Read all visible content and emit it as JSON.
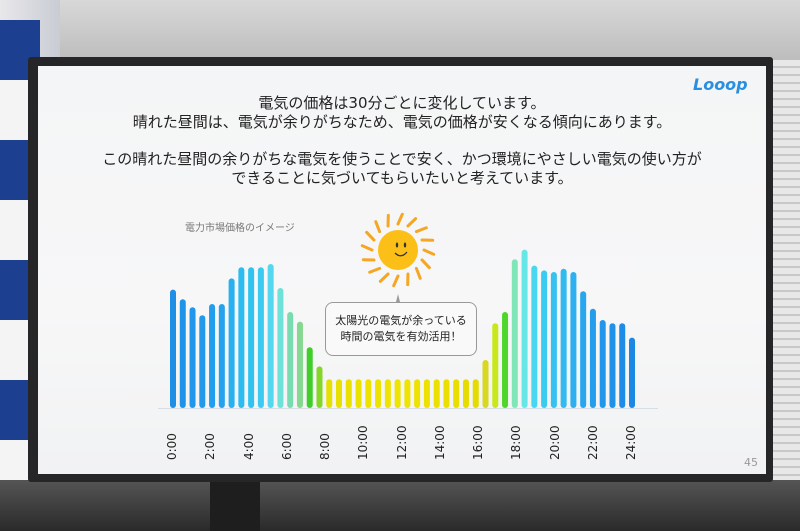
{
  "slide": {
    "logo": "Looop",
    "lines": [
      "電気の価格は30分ごとに変化しています。",
      "晴れた昼間は、電気が余りがちなため、電気の価格が安くなる傾向にあります。",
      "この晴れた昼間の余りがちな電気を使うことで安く、かつ環境にやさしい電気の使い方が",
      "できることに気づいてもらいたいと考えています。"
    ],
    "page_number": "45",
    "callout": [
      "太陽光の電気が余っている",
      "時間の電気を有効活用！"
    ]
  },
  "chart_data": {
    "type": "bar",
    "title": "電力市場価格のイメージ",
    "xlabel": "",
    "ylabel": "",
    "x_tick_labels": [
      "0:00",
      "2:00",
      "4:00",
      "6:00",
      "8:00",
      "10:00",
      "12:00",
      "14:00",
      "16:00",
      "18:00",
      "20:00",
      "22:00",
      "24:00"
    ],
    "values": [
      74,
      68,
      63,
      58,
      65,
      65,
      81,
      88,
      88,
      88,
      90,
      75,
      60,
      54,
      38,
      26,
      18,
      18,
      18,
      18,
      18,
      18,
      18,
      18,
      18,
      18,
      18,
      18,
      18,
      18,
      18,
      18,
      30,
      53,
      60,
      93,
      99,
      89,
      86,
      85,
      87,
      85,
      73,
      62,
      55,
      53,
      53,
      44
    ],
    "colors": [
      "#1f8fe6",
      "#1f93e8",
      "#2196ea",
      "#2299ea",
      "#239ded",
      "#25a2ee",
      "#28b0ef",
      "#2cbcf0",
      "#30c3f0",
      "#3ccbf0",
      "#55d8ef",
      "#6ee2d8",
      "#78dcb0",
      "#86d890",
      "#3fcf28",
      "#86d628",
      "#e6e000",
      "#e8e000",
      "#eae100",
      "#ece200",
      "#ede200",
      "#eee300",
      "#efe300",
      "#efe300",
      "#efe300",
      "#eee200",
      "#ede100",
      "#ece000",
      "#ebdf00",
      "#e9de00",
      "#e7dc00",
      "#e5db00",
      "#d8d820",
      "#c8e81a",
      "#4ed62a",
      "#80e6b8",
      "#66e6e6",
      "#48d6f0",
      "#3ccbf0",
      "#36c2f0",
      "#30baf0",
      "#2cb0ef",
      "#28a6ee",
      "#249ded",
      "#2196ea",
      "#1f91e8",
      "#1e8ce6",
      "#1d87e4"
    ],
    "grid": false,
    "legend": "none"
  }
}
